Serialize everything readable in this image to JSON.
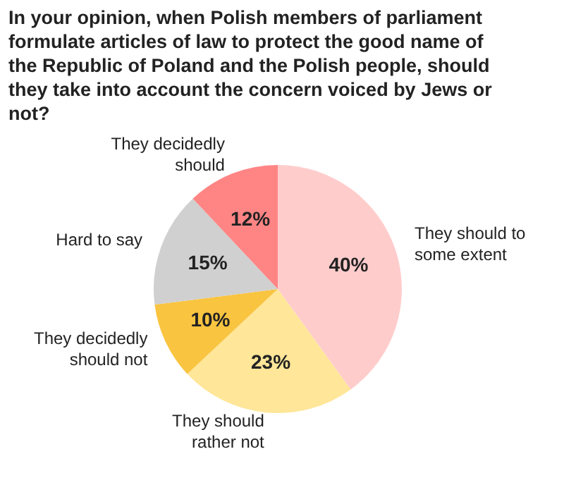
{
  "chart_data": {
    "type": "pie",
    "title": "In your opinion, when Polish members of parliament formulate articles of law to protect the good name of the Republic of Poland and the Polish people, should they take into account the concern voiced by Jews or not?",
    "categories": [
      "They should to some extent",
      "They should rather not",
      "They decidedly should not",
      "Hard to say",
      "They decidedly should"
    ],
    "values": [
      40,
      23,
      10,
      15,
      12
    ],
    "value_labels": [
      "40%",
      "23%",
      "10%",
      "15%",
      "12%"
    ],
    "colors": [
      "#ffcccc",
      "#ffe699",
      "#f9c440",
      "#d0d0d0",
      "#ff8585"
    ],
    "legend": false
  }
}
